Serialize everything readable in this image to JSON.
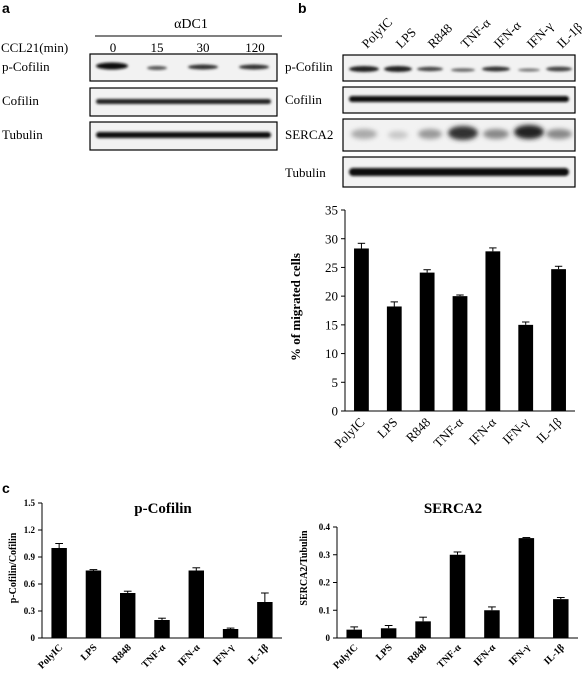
{
  "panel_a": {
    "label": "a",
    "group_label": "αDC1",
    "time_label": "CCL21(min)",
    "times": [
      "0",
      "15",
      "30",
      "120"
    ],
    "rows": [
      "p-Cofilin",
      "Cofilin",
      "Tubulin"
    ]
  },
  "panel_b": {
    "label": "b",
    "conditions": [
      "PolyIC",
      "LPS",
      "R848",
      "TNF-α",
      "IFN-α",
      "IFN-γ",
      "IL-1β"
    ],
    "rows": [
      "p-Cofilin",
      "Cofilin",
      "SERCA2",
      "Tubulin"
    ]
  },
  "panel_c": {
    "label": "c"
  },
  "chart_data": [
    {
      "type": "bar",
      "panel": "b",
      "title": "",
      "xlabel": "",
      "ylabel": "% of migrated cells",
      "categories": [
        "PolyIC",
        "LPS",
        "R848",
        "TNF-α",
        "IFN-α",
        "IFN-γ",
        "IL-1β"
      ],
      "values": [
        28.3,
        18.2,
        24.1,
        20.0,
        27.8,
        15.0,
        24.7
      ],
      "errors": [
        0.9,
        0.8,
        0.5,
        0.2,
        0.6,
        0.5,
        0.5
      ],
      "ylim": [
        0,
        35
      ],
      "yticks": [
        "0",
        "5",
        "10",
        "15",
        "20",
        "25",
        "30",
        "35"
      ],
      "grid": false,
      "color": "#000000"
    },
    {
      "type": "bar",
      "panel": "c",
      "title": "p-Cofilin",
      "xlabel": "",
      "ylabel": "p-Cofilin/Cofilin",
      "categories": [
        "PolyIC",
        "LPS",
        "R848",
        "TNF-α",
        "IFN-α",
        "IFN-γ",
        "IL-1β"
      ],
      "values": [
        1.0,
        0.75,
        0.5,
        0.2,
        0.75,
        0.1,
        0.4
      ],
      "errors": [
        0.05,
        0.01,
        0.02,
        0.02,
        0.03,
        0.01,
        0.1
      ],
      "ylim": [
        0,
        1.5
      ],
      "yticks": [
        "0",
        "0.3",
        "0.6",
        "0.9",
        "1.2",
        "1.5"
      ],
      "grid": false,
      "color": "#000000"
    },
    {
      "type": "bar",
      "panel": "c",
      "title": "SERCA2",
      "xlabel": "",
      "ylabel": "SERCA2/Tubulin",
      "categories": [
        "PolyIC",
        "LPS",
        "R848",
        "TNF-α",
        "IFN-α",
        "IFN-γ",
        "IL-1β"
      ],
      "values": [
        0.03,
        0.035,
        0.06,
        0.3,
        0.1,
        0.36,
        0.14
      ],
      "errors": [
        0.01,
        0.01,
        0.015,
        0.01,
        0.012,
        0.002,
        0.006
      ],
      "ylim": [
        0,
        0.4
      ],
      "yticks": [
        "0",
        "0.1",
        "0.2",
        "0.3",
        "0.4"
      ],
      "grid": false,
      "color": "#000000"
    }
  ]
}
